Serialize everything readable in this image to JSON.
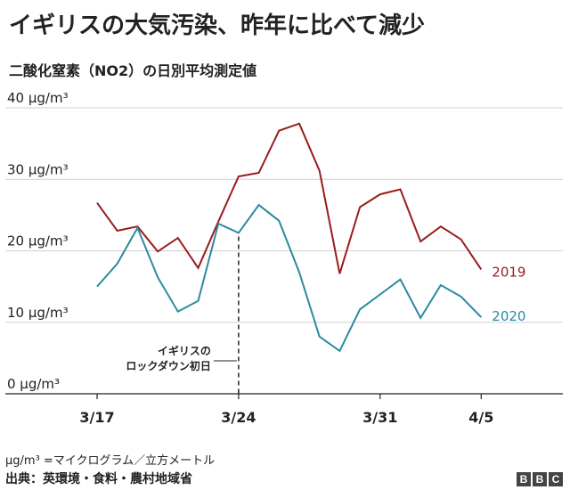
{
  "title": "イギリスの大気汚染、昨年に比べて減少",
  "subtitle": "二酸化窒素（NO2）の日別平均測定値",
  "footnote": "μg/m³ =マイクログラム／立方メートル",
  "source": "出典：英環境・食料・農村地域省",
  "logo": [
    "B",
    "B",
    "C"
  ],
  "colors": {
    "series_2019": "#9a1b1b",
    "series_2020": "#2a8a9e",
    "grid": "#d0d0d0",
    "axis": "#222222"
  },
  "chart_data": {
    "type": "line",
    "title": "二酸化窒素（NO2）の日別平均測定値",
    "ylabel": "μg/m³",
    "ylim": [
      0,
      40
    ],
    "yticks": [
      {
        "value": 0,
        "label": "0 μg/m³"
      },
      {
        "value": 10,
        "label": "10 μg/m³"
      },
      {
        "value": 20,
        "label": "20 μg/m³"
      },
      {
        "value": 30,
        "label": "30 μg/m³"
      },
      {
        "value": 40,
        "label": "40 μg/m³"
      }
    ],
    "xlim": [
      0,
      25
    ],
    "xticks": [
      {
        "index": 1,
        "label": "3/17"
      },
      {
        "index": 8,
        "label": "3/24"
      },
      {
        "index": 15,
        "label": "3/31"
      },
      {
        "index": 20,
        "label": "4/5"
      }
    ],
    "x": [
      1,
      2,
      3,
      4,
      5,
      6,
      7,
      8,
      9,
      10,
      11,
      12,
      13,
      14,
      15,
      16,
      17,
      18,
      19,
      20
    ],
    "series": [
      {
        "name": "2019",
        "color": "#9a1b1b",
        "values": [
          26.7,
          22.8,
          23.4,
          19.9,
          21.8,
          17.6,
          24.1,
          30.4,
          30.9,
          36.8,
          37.8,
          31.2,
          16.8,
          26.1,
          27.9,
          28.6,
          21.3,
          23.4,
          21.6,
          17.4
        ]
      },
      {
        "name": "2020",
        "color": "#2a8a9e",
        "values": [
          15.0,
          18.2,
          23.2,
          16.3,
          11.5,
          13.0,
          23.8,
          22.5,
          26.4,
          24.2,
          17.0,
          8.0,
          6.0,
          11.8,
          13.9,
          16.0,
          10.6,
          15.2,
          13.6,
          10.7
        ]
      }
    ],
    "annotation": {
      "index": 8,
      "lines": [
        "イギリスの",
        "ロックダウン初日"
      ]
    }
  }
}
